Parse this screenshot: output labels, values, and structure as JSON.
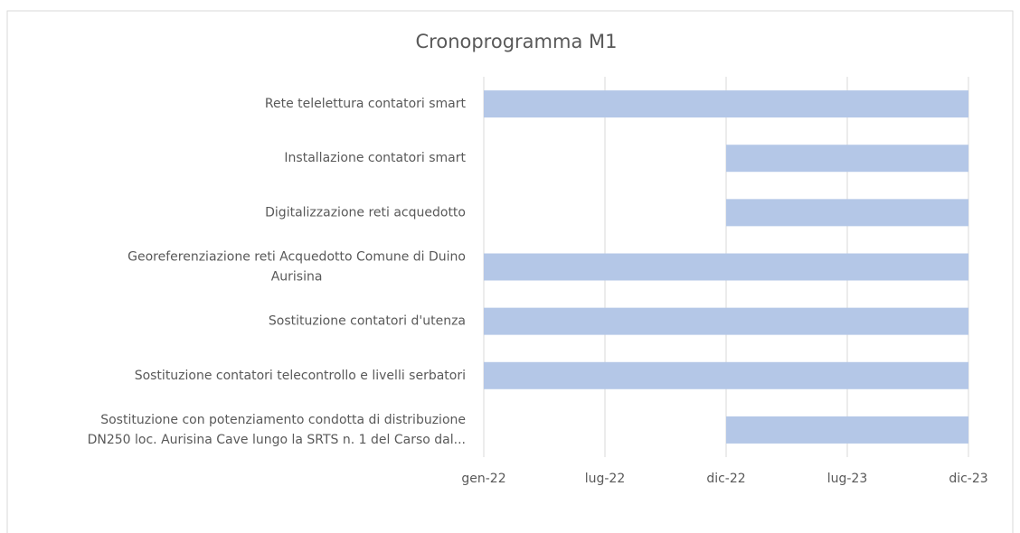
{
  "chart_data": {
    "type": "gantt",
    "title": "Cronoprogramma M1",
    "tasks": [
      {
        "label": [
          "Rete telelettura contatori smart"
        ],
        "start": 0,
        "end": 4
      },
      {
        "label": [
          "Installazione contatori smart"
        ],
        "start": 2,
        "end": 4
      },
      {
        "label": [
          "Digitalizzazione reti acquedotto"
        ],
        "start": 2,
        "end": 4
      },
      {
        "label": [
          "Georeferenziazione reti Acquedotto Comune di Duino",
          "Aurisina"
        ],
        "start": 0,
        "end": 4
      },
      {
        "label": [
          "Sostituzione contatori d'utenza"
        ],
        "start": 0,
        "end": 4
      },
      {
        "label": [
          "Sostituzione contatori telecontrollo e livelli serbatori"
        ],
        "start": 0,
        "end": 4
      },
      {
        "label": [
          "Sostituzione con potenziamento condotta di distribuzione",
          "DN250 loc. Aurisina Cave lungo la SRTS n. 1 del Carso dal..."
        ],
        "start": 2,
        "end": 4
      }
    ],
    "color": "#b4c7e7",
    "xlim": [
      0,
      4
    ],
    "xticks": [
      {
        "value": 0,
        "label": "gen-22"
      },
      {
        "value": 1,
        "label": "lug-22"
      },
      {
        "value": 2,
        "label": "dic-22"
      },
      {
        "value": 3,
        "label": "lug-23"
      },
      {
        "value": 4,
        "label": "dic-23"
      }
    ],
    "grid": true
  }
}
